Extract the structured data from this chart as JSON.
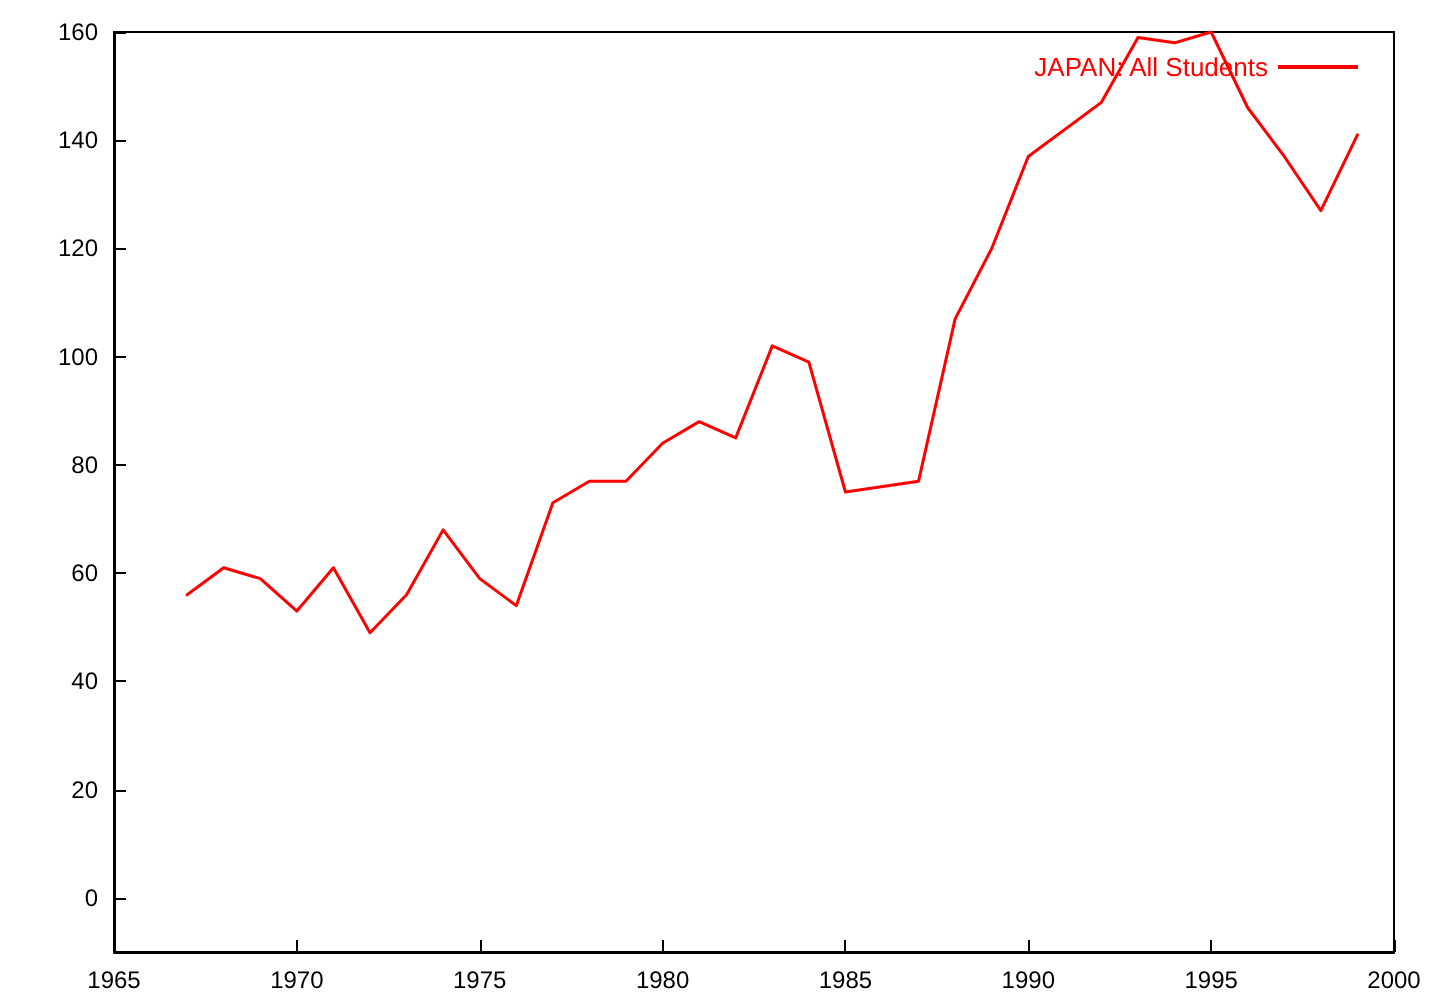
{
  "chart_data": {
    "type": "line",
    "x": [
      1967,
      1968,
      1969,
      1970,
      1971,
      1972,
      1973,
      1974,
      1975,
      1976,
      1977,
      1978,
      1979,
      1980,
      1981,
      1982,
      1983,
      1984,
      1985,
      1987,
      1988,
      1989,
      1990,
      1992,
      1993,
      1994,
      1995,
      1996,
      1997,
      1998,
      1999
    ],
    "series": [
      {
        "name": "JAPAN: All Students",
        "color": "#ff0000",
        "values": [
          56,
          61,
          59,
          53,
          61,
          49,
          56,
          68,
          59,
          54,
          73,
          77,
          77,
          84,
          88,
          85,
          102,
          99,
          75,
          77,
          107,
          120,
          137,
          147,
          159,
          158,
          160,
          146,
          137,
          127,
          141
        ]
      }
    ],
    "xlim": [
      1965,
      2000
    ],
    "xticks": [
      1965,
      1970,
      1975,
      1980,
      1985,
      1990,
      1995,
      2000
    ],
    "ylim": [
      -10,
      160
    ],
    "yticks": [
      0,
      20,
      40,
      60,
      80,
      100,
      120,
      140,
      160
    ],
    "grid": false,
    "legend": "top right",
    "marker": "none",
    "line_style": "solid"
  }
}
